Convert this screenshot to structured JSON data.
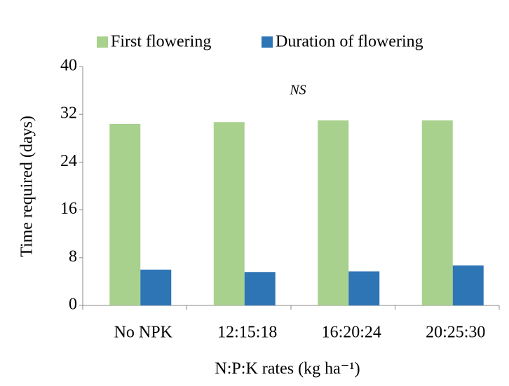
{
  "chart_data": {
    "type": "bar",
    "y_label": "Time required (days)",
    "x_label": "N:P:K rates (kg ha⁻¹)",
    "annotation": "NS",
    "categories": [
      "No NPK",
      "12:15:18",
      "16:20:24",
      "20:25:30"
    ],
    "series": [
      {
        "name": "First flowering",
        "color": "#a9d18e",
        "values": [
          30.4,
          30.7,
          31.0,
          31.0
        ]
      },
      {
        "name": "Duration of flowering",
        "color": "#2e75b6",
        "values": [
          6.0,
          5.6,
          5.7,
          6.7
        ]
      }
    ],
    "ylim": [
      0,
      40
    ],
    "yticks": [
      0,
      8,
      16,
      24,
      32,
      40
    ],
    "legend": "top"
  }
}
